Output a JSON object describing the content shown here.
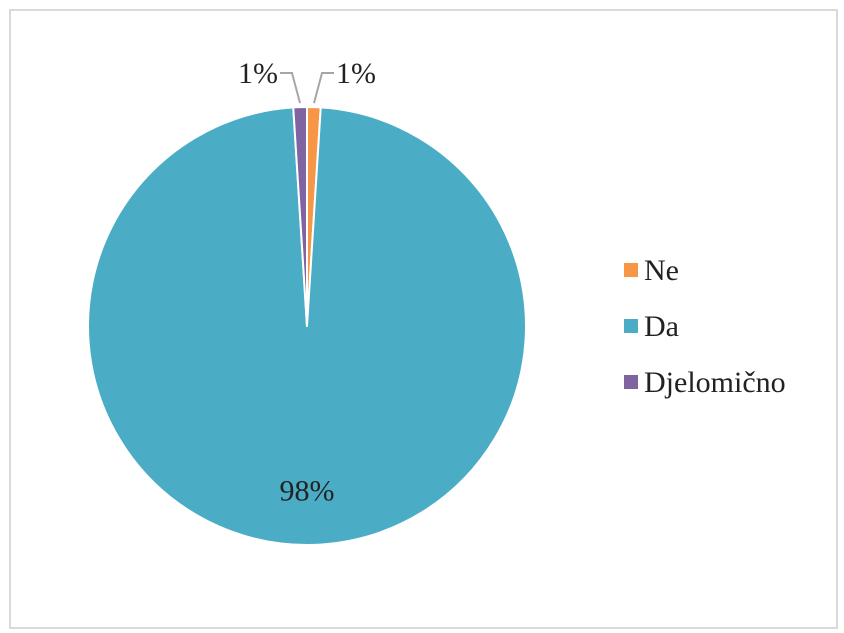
{
  "chart_data": {
    "type": "pie",
    "title": "",
    "slices": [
      {
        "name": "Ne",
        "value": 1,
        "label": "1%",
        "color": "#F79646"
      },
      {
        "name": "Da",
        "value": 98,
        "label": "98%",
        "color": "#4BACC6"
      },
      {
        "name": "Djelomično",
        "value": 1,
        "label": "1%",
        "color": "#8064A2"
      }
    ],
    "legend": {
      "position": "right",
      "items": [
        "Ne",
        "Da",
        "Djelomično"
      ]
    },
    "leader_line_color": "#A6A6A6",
    "border_color": "#D9D9D9"
  }
}
